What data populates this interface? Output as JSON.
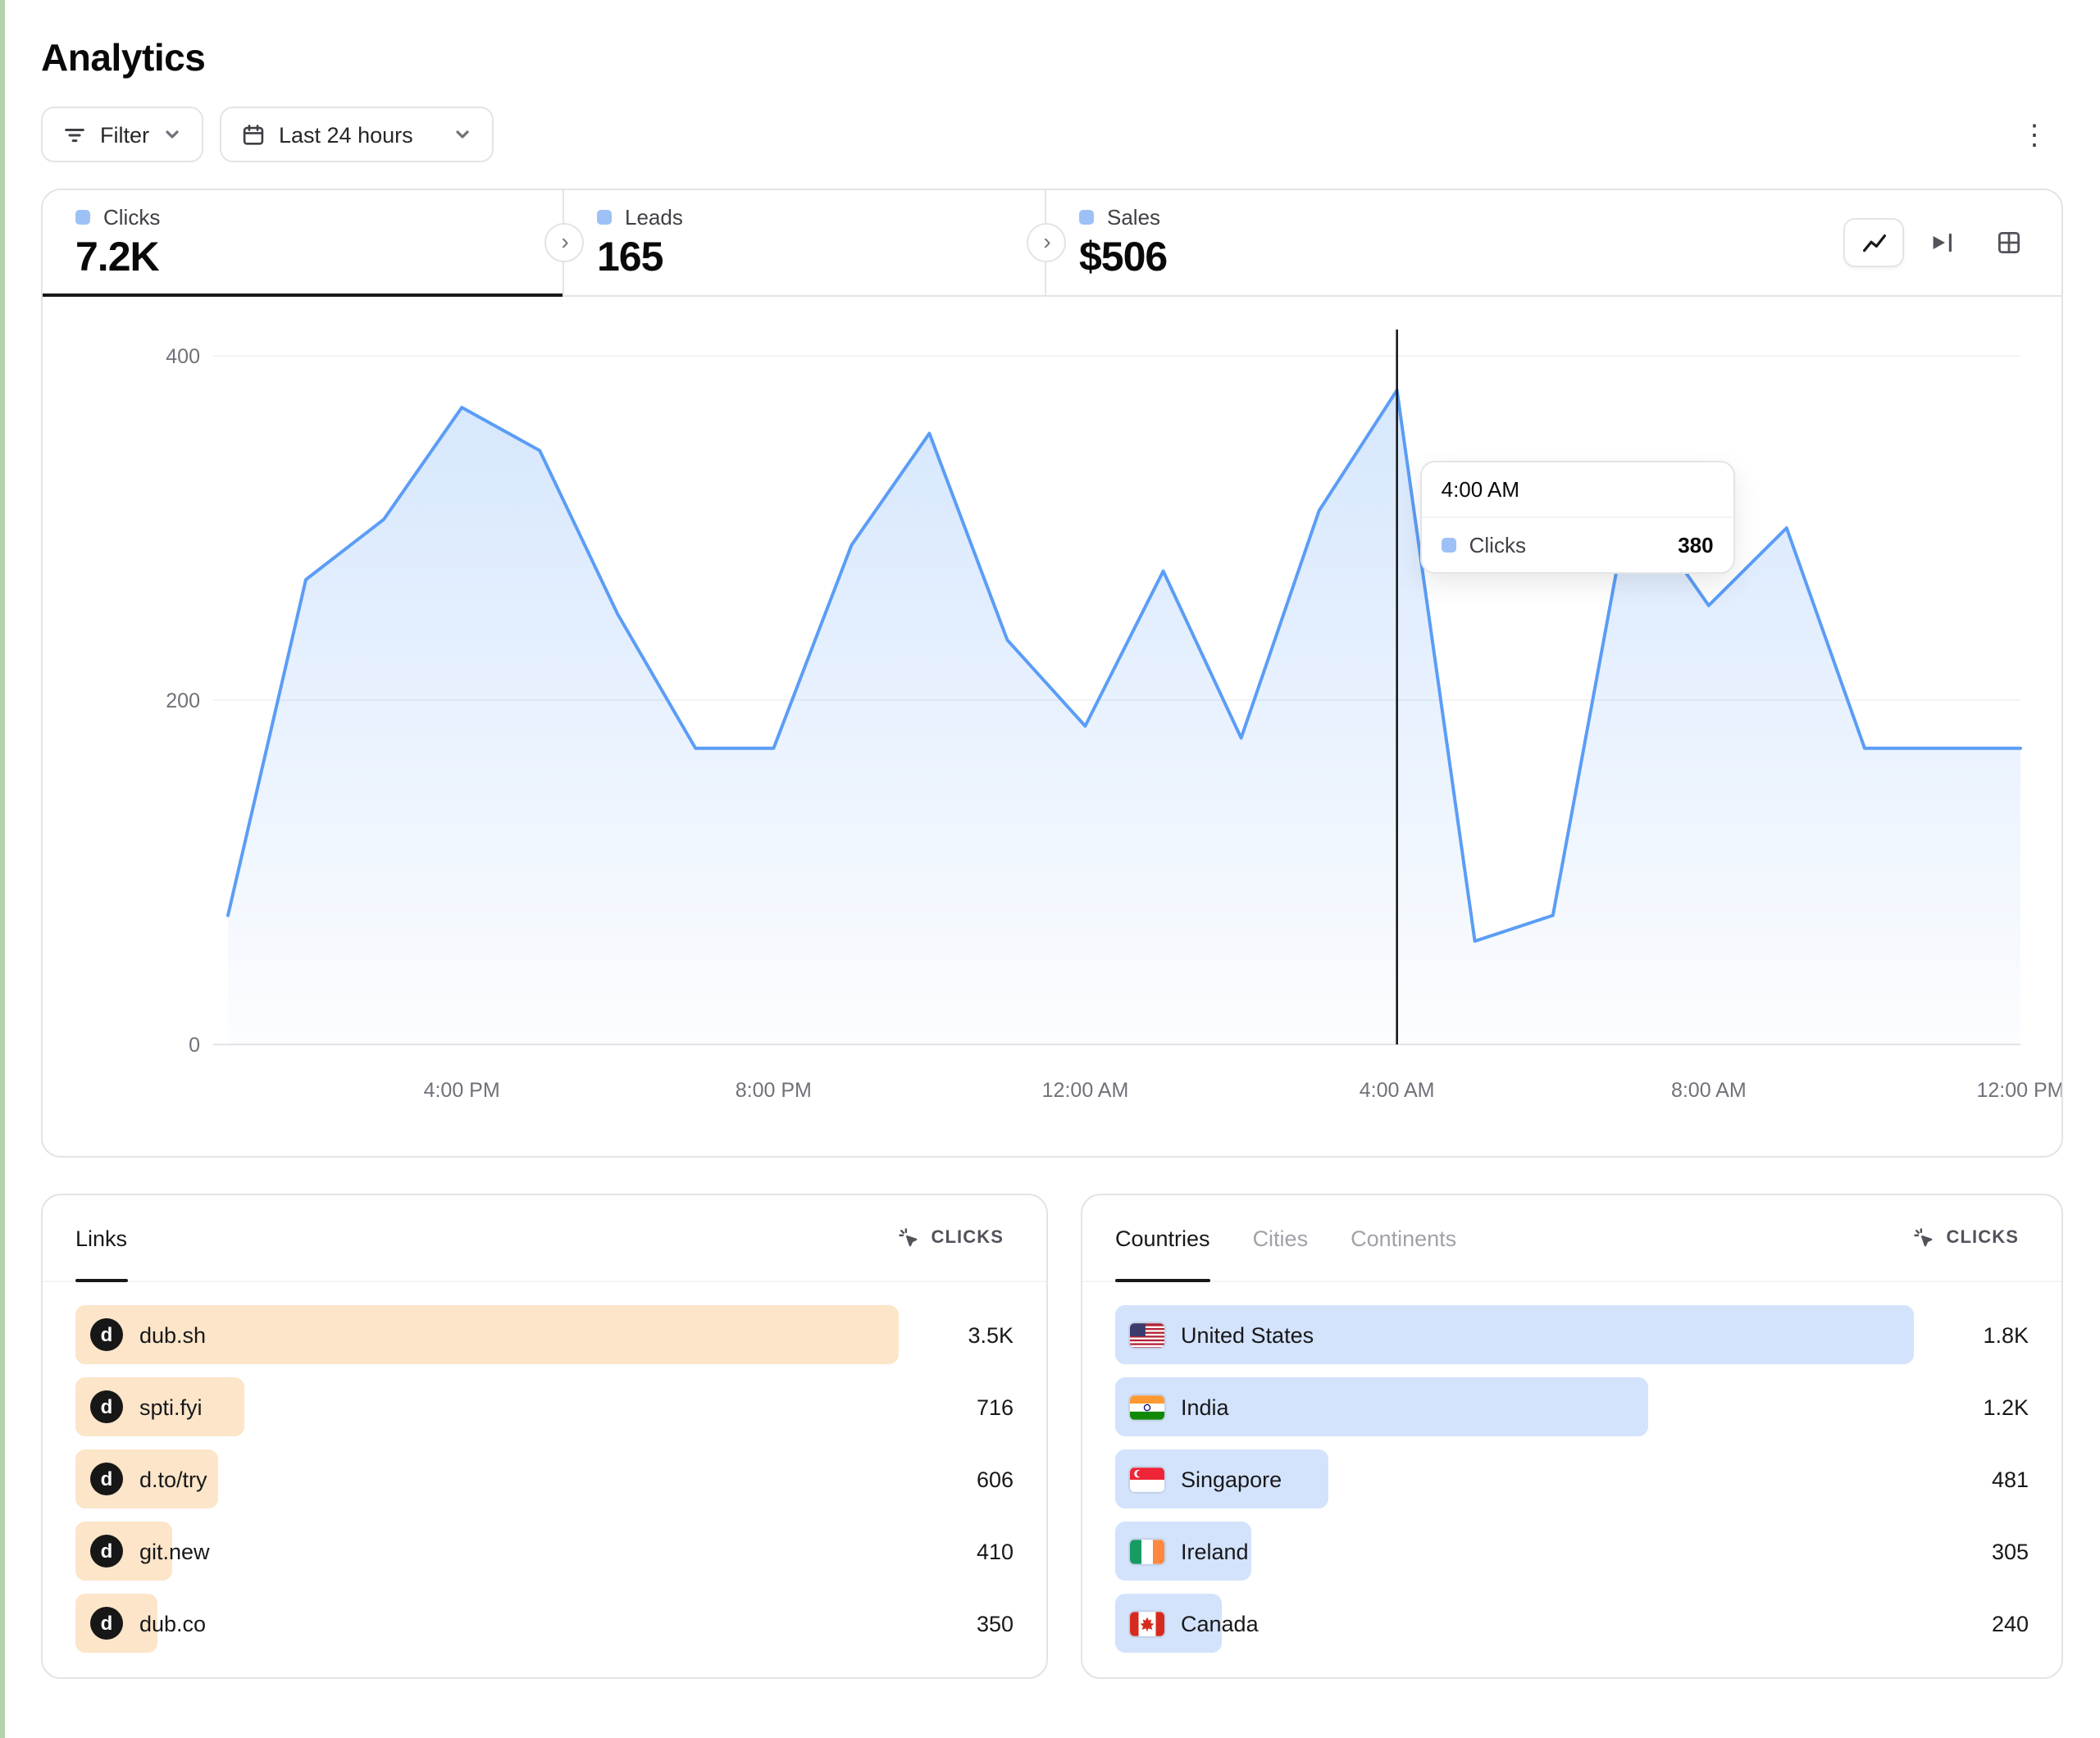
{
  "page": {
    "title": "Analytics"
  },
  "toolbar": {
    "filter_label": "Filter",
    "date_range_label": "Last 24 hours"
  },
  "icons": {
    "more_glyph": "⋮",
    "chevron_right_glyph": "›",
    "favicon_letter": "d"
  },
  "colors": {
    "accent_line": "#5b9df6",
    "indicator_square": "#9dc1f7",
    "links_bar": "#fce5c9",
    "geo_bar": "#d3e3fb"
  },
  "stats": [
    {
      "label": "Clicks",
      "value": "7.2K",
      "active": true
    },
    {
      "label": "Leads",
      "value": "165",
      "active": false
    },
    {
      "label": "Sales",
      "value": "$506",
      "active": false
    }
  ],
  "chart_data": {
    "type": "area",
    "title": "Clicks",
    "series_name": "Clicks",
    "x": [
      "1:00 PM",
      "2:00 PM",
      "3:00 PM",
      "4:00 PM",
      "5:00 PM",
      "6:00 PM",
      "7:00 PM",
      "8:00 PM",
      "9:00 PM",
      "10:00 PM",
      "11:00 PM",
      "12:00 AM",
      "1:00 AM",
      "2:00 AM",
      "3:00 AM",
      "4:00 AM",
      "5:00 AM",
      "6:00 AM",
      "7:00 AM",
      "8:00 AM",
      "9:00 AM",
      "10:00 AM",
      "11:00 AM",
      "12:00 PM"
    ],
    "values": [
      75,
      270,
      305,
      370,
      345,
      250,
      172,
      172,
      290,
      355,
      235,
      185,
      275,
      178,
      310,
      380,
      60,
      75,
      320,
      255,
      300,
      172,
      172,
      172
    ],
    "ylim": [
      0,
      400
    ],
    "yticks": [
      0,
      200,
      400
    ],
    "xticks": [
      {
        "i": 3,
        "label": "4:00 PM"
      },
      {
        "i": 7,
        "label": "8:00 PM"
      },
      {
        "i": 11,
        "label": "12:00 AM"
      },
      {
        "i": 15,
        "label": "4:00 AM"
      },
      {
        "i": 19,
        "label": "8:00 AM"
      },
      {
        "i": 23,
        "label": "12:00 PM"
      }
    ],
    "grid": "horizontal",
    "legend_position": "none",
    "line_color": "#5b9df6",
    "cursor": {
      "i": 15
    },
    "tooltip": {
      "time": "4:00 AM",
      "series": "Clicks",
      "value": "380"
    }
  },
  "links_panel": {
    "tab": "Links",
    "metric_label": "CLICKS",
    "bar_color": "#fce5c9",
    "rows": [
      {
        "label": "dub.sh",
        "value": "3.5K",
        "raw": 3500
      },
      {
        "label": "spti.fyi",
        "value": "716",
        "raw": 716
      },
      {
        "label": "d.to/try",
        "value": "606",
        "raw": 606
      },
      {
        "label": "git.new",
        "value": "410",
        "raw": 410
      },
      {
        "label": "dub.co",
        "value": "350",
        "raw": 350
      }
    ]
  },
  "geo_panel": {
    "tabs": [
      "Countries",
      "Cities",
      "Continents"
    ],
    "active_tab": "Countries",
    "metric_label": "CLICKS",
    "bar_color": "#d3e3fb",
    "rows": [
      {
        "label": "United States",
        "flag": "us",
        "value": "1.8K",
        "raw": 1800
      },
      {
        "label": "India",
        "flag": "in",
        "value": "1.2K",
        "raw": 1200
      },
      {
        "label": "Singapore",
        "flag": "sg",
        "value": "481",
        "raw": 481
      },
      {
        "label": "Ireland",
        "flag": "ie",
        "value": "305",
        "raw": 305
      },
      {
        "label": "Canada",
        "flag": "ca",
        "value": "240",
        "raw": 240
      }
    ]
  }
}
